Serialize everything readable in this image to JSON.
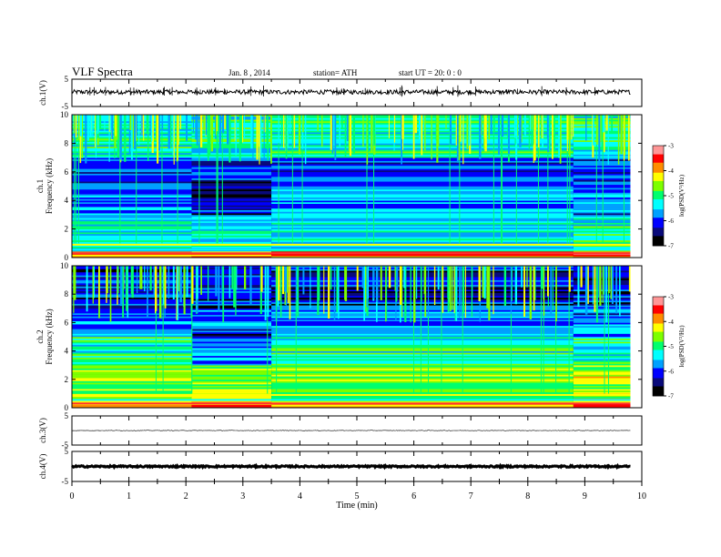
{
  "header": {
    "title": "VLF  Spectra",
    "date": "Jan.  8  , 2014",
    "station": "station= ATH",
    "start": "start  UT  =    20: 0  : 0"
  },
  "colors": {
    "waveform": "#000000",
    "colormap": [
      "#000000",
      "#0a0a7a",
      "#0000ff",
      "#00a0ff",
      "#00ffff",
      "#00ff6e",
      "#7dff00",
      "#ffff00",
      "#ff8c00",
      "#ff0000",
      "#ff9696",
      "#ffffff"
    ]
  },
  "chart_data": [
    {
      "type": "line",
      "ylabel": "ch.1(V)",
      "ylim": [
        -5,
        5
      ],
      "yticks": [
        "5",
        "-5"
      ],
      "description_level": 0.1
    },
    {
      "type": "heatmap",
      "ylabel": "ch.1\nFrequency  (kHz)",
      "ylim": [
        0,
        10
      ],
      "yticks": [
        "0",
        "2",
        "4",
        "6",
        "8",
        "10"
      ],
      "colorbar": {
        "label": "log(PSD(V²/Hz)",
        "ticks": [
          "-3",
          "-4",
          "-5",
          "-6",
          "-7"
        ],
        "range": [
          -7,
          -3
        ]
      }
    },
    {
      "type": "heatmap",
      "ylabel": "ch.2\nFrequency  (kHz)",
      "ylim": [
        0,
        10
      ],
      "yticks": [
        "0",
        "2",
        "4",
        "6",
        "8",
        "10"
      ],
      "colorbar": {
        "label": "log(PSD(V²/Hz)",
        "ticks": [
          "-3",
          "-4",
          "-5",
          "-6",
          "-7"
        ],
        "range": [
          -7,
          -3
        ]
      }
    },
    {
      "type": "line",
      "ylabel": "ch.3(V)",
      "ylim": [
        -5,
        5
      ],
      "yticks": [
        "5",
        "-5"
      ]
    },
    {
      "type": "line",
      "ylabel": "ch.4(V)",
      "ylim": [
        -5,
        5
      ],
      "yticks": [
        "5",
        "-5"
      ]
    }
  ],
  "xaxis": {
    "label": "Time  (min)",
    "range": [
      0,
      10
    ],
    "ticks": [
      "0",
      "1",
      "2",
      "3",
      "4",
      "5",
      "6",
      "7",
      "8",
      "9",
      "10"
    ],
    "data_end": 9.8
  }
}
